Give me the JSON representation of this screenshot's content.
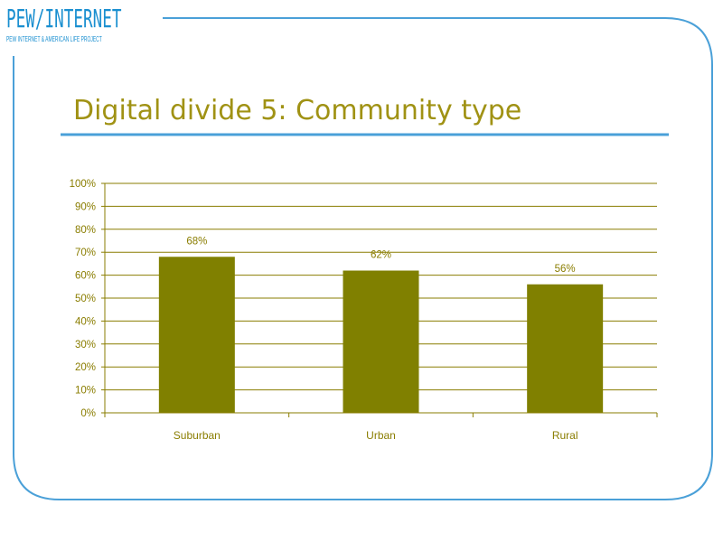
{
  "logo": {
    "main": "PEW/INTERNET",
    "sub": "PEW INTERNET & AMERICAN LIFE PROJECT"
  },
  "slide": {
    "title": "Digital divide 5: Community type"
  },
  "colors": {
    "frame": "#4aa0d8",
    "rule": "#4aa0d8",
    "title": "#a09214",
    "bar": "#808000",
    "grid": "#8a7d00",
    "text": "#8a7d00"
  },
  "chart_data": {
    "type": "bar",
    "categories": [
      "Suburban",
      "Urban",
      "Rural"
    ],
    "values": [
      68,
      62,
      56
    ],
    "value_labels": [
      "68%",
      "62%",
      "56%"
    ],
    "title": "",
    "xlabel": "",
    "ylabel": "",
    "ylim": [
      0,
      100
    ],
    "yticks": [
      0,
      10,
      20,
      30,
      40,
      50,
      60,
      70,
      80,
      90,
      100
    ],
    "ytick_labels": [
      "0%",
      "10%",
      "20%",
      "30%",
      "40%",
      "50%",
      "60%",
      "70%",
      "80%",
      "90%",
      "100%"
    ],
    "grid": true,
    "legend": "none"
  }
}
